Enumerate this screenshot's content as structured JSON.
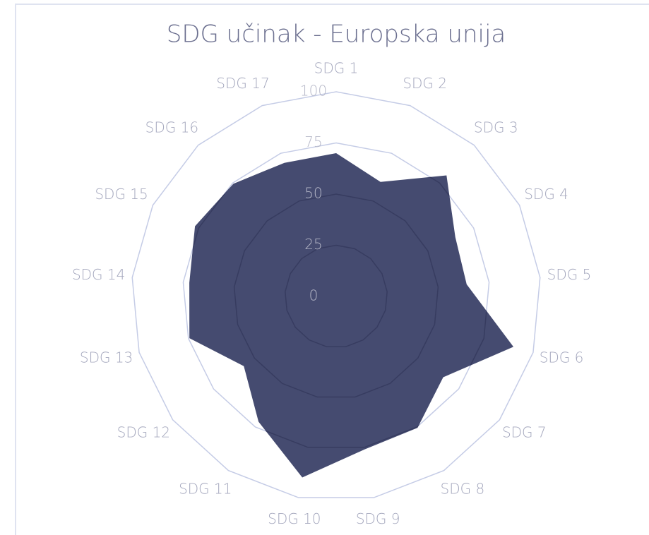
{
  "chart_data": {
    "type": "radar",
    "title": "SDG učinak - Europska unija",
    "categories": [
      "SDG 1",
      "SDG 2",
      "SDG 3",
      "SDG 4",
      "SDG 5",
      "SDG 6",
      "SDG 7",
      "SDG 8",
      "SDG 9",
      "SDG 10",
      "SDG 11",
      "SDG 12",
      "SDG 13",
      "SDG 14",
      "SDG 15",
      "SDG 16",
      "SDG 17"
    ],
    "values": [
      70,
      60,
      80,
      65,
      64,
      90,
      65.5,
      75.5,
      76,
      90,
      72,
      56.5,
      74.5,
      72,
      77,
      74.5,
      70
    ],
    "color": "#3b4168",
    "ylim": [
      0,
      100
    ],
    "yticks": [
      0,
      25,
      50,
      75,
      100
    ],
    "grid": true
  }
}
